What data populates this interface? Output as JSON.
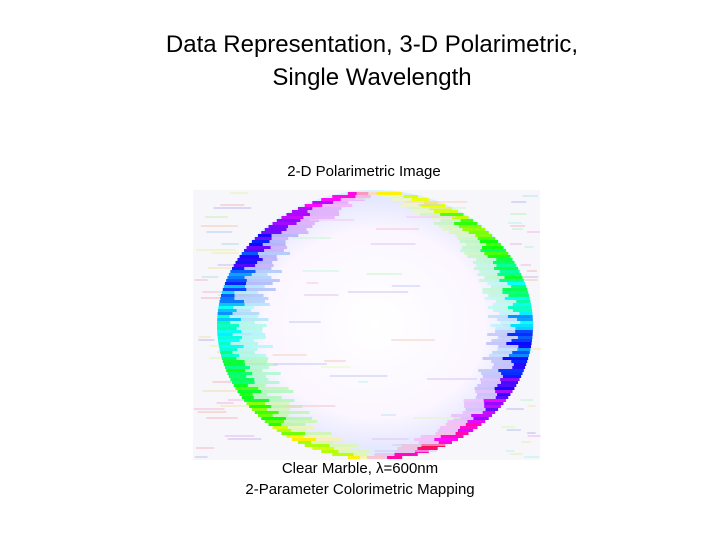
{
  "slide": {
    "title_lines": [
      "Data Representation, 3-D Polarimetric,",
      "Single Wavelength"
    ],
    "image_label": "2-D Polarimetric Image",
    "caption_lines": [
      "Clear Marble, λ=600nm",
      "2-Parameter Colorimetric Mapping"
    ]
  }
}
